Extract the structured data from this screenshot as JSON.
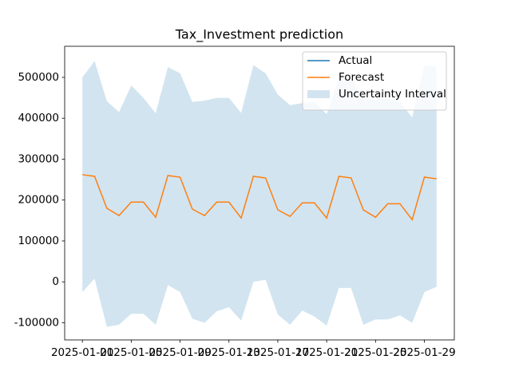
{
  "chart_data": {
    "type": "line",
    "title": "Tax_Investment prediction",
    "x": [
      "2025-01-01",
      "2025-01-02",
      "2025-01-03",
      "2025-01-04",
      "2025-01-05",
      "2025-01-06",
      "2025-01-07",
      "2025-01-08",
      "2025-01-09",
      "2025-01-10",
      "2025-01-11",
      "2025-01-12",
      "2025-01-13",
      "2025-01-14",
      "2025-01-15",
      "2025-01-16",
      "2025-01-17",
      "2025-01-18",
      "2025-01-19",
      "2025-01-20",
      "2025-01-21",
      "2025-01-22",
      "2025-01-23",
      "2025-01-24",
      "2025-01-25",
      "2025-01-26",
      "2025-01-27",
      "2025-01-28",
      "2025-01-29",
      "2025-01-30"
    ],
    "series": [
      {
        "name": "Actual",
        "color": "#1f77b4",
        "values": [
          null,
          null,
          null,
          null,
          null,
          null,
          null,
          null,
          null,
          null,
          null,
          null,
          null,
          null,
          null,
          null,
          null,
          null,
          null,
          null,
          null,
          null,
          null,
          null,
          null,
          null,
          null,
          null,
          null,
          null
        ]
      },
      {
        "name": "Forecast",
        "color": "#ff7f0e",
        "values": [
          262000,
          258000,
          180000,
          162000,
          195000,
          195000,
          158000,
          260000,
          256000,
          178000,
          162000,
          195000,
          195000,
          156000,
          258000,
          254000,
          176000,
          160000,
          193000,
          193000,
          156000,
          258000,
          254000,
          176000,
          158000,
          191000,
          191000,
          152000,
          256000,
          252000
        ]
      }
    ],
    "interval": {
      "name": "Uncertainty Interval",
      "color": "#1f77b4",
      "upper": [
        500000,
        540000,
        442000,
        415000,
        480000,
        450000,
        412000,
        525000,
        510000,
        440000,
        443000,
        450000,
        450000,
        413000,
        530000,
        510000,
        458000,
        432000,
        437000,
        440000,
        410000,
        500000,
        495000,
        450000,
        445000,
        450000,
        440000,
        402000,
        530000,
        525000
      ],
      "lower": [
        -25000,
        8000,
        -110000,
        -105000,
        -78000,
        -78000,
        -105000,
        -8000,
        -25000,
        -90000,
        -100000,
        -72000,
        -62000,
        -95000,
        0,
        5000,
        -80000,
        -105000,
        -70000,
        -85000,
        -107000,
        -15000,
        -15000,
        -105000,
        -92000,
        -92000,
        -82000,
        -100000,
        -25000,
        -12000
      ]
    },
    "xlim": [
      "2024-12-30T13:12",
      "2025-01-31T10:48"
    ],
    "xticks": [
      "2025-01-01",
      "2025-01-05",
      "2025-01-09",
      "2025-01-13",
      "2025-01-17",
      "2025-01-21",
      "2025-01-25",
      "2025-01-29"
    ],
    "ylim": [
      -142000,
      576000
    ],
    "yticks": [
      -100000,
      0,
      100000,
      200000,
      300000,
      400000,
      500000
    ],
    "legend": "upper right"
  }
}
